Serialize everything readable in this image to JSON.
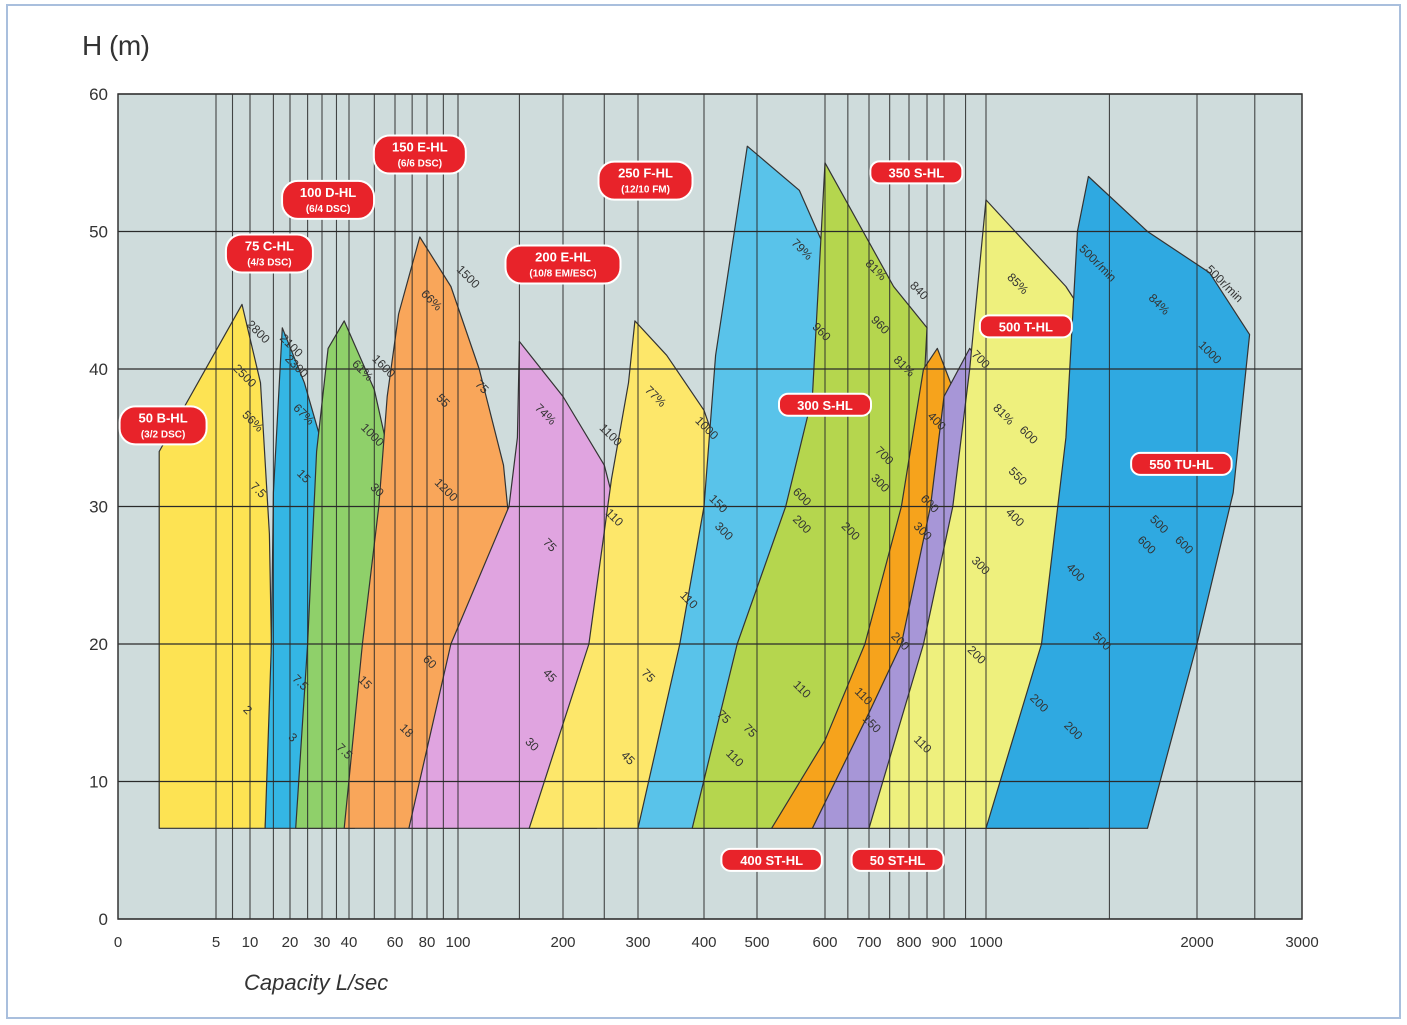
{
  "chart_data": {
    "type": "area",
    "title": "",
    "ylabel": "H (m)",
    "xlabel": "Capacity L/sec",
    "x_scale": "log",
    "ylim": [
      0,
      60
    ],
    "yticks": [
      0,
      10,
      20,
      30,
      40,
      50,
      60
    ],
    "xticks": [
      {
        "label": "0",
        "value": 0
      },
      {
        "label": "5",
        "value": 5
      },
      {
        "label": "10",
        "value": 10
      },
      {
        "label": "20",
        "value": 20
      },
      {
        "label": "30",
        "value": 30
      },
      {
        "label": "40",
        "value": 40
      },
      {
        "label": "60",
        "value": 60
      },
      {
        "label": "80",
        "value": 80
      },
      {
        "label": "100",
        "value": 100
      },
      {
        "label": "200",
        "value": 200
      },
      {
        "label": "300",
        "value": 300
      },
      {
        "label": "400",
        "value": 400
      },
      {
        "label": "500",
        "value": 500
      },
      {
        "label": "600",
        "value": 600
      },
      {
        "label": "700",
        "value": 700
      },
      {
        "label": "800",
        "value": 800
      },
      {
        "label": "900",
        "value": 900
      },
      {
        "label": "1000",
        "value": 1000
      },
      {
        "label": "2000",
        "value": 2000
      },
      {
        "label": "3000",
        "value": 3000
      }
    ],
    "grid": true,
    "colors": {
      "background": "#cfdcdc",
      "grid": "#2a2a2a",
      "label_bg": "#e8232a",
      "label_text": "#ffffff",
      "curve": "#2a2a2a"
    },
    "series": [
      {
        "name": "50 B-HL",
        "sub": "(3/2 DSC)",
        "color": "#fde353",
        "label_at": {
          "x": 2.3,
          "y": 35.9
        },
        "polygon": [
          [
            2.1,
            6.6
          ],
          [
            2.1,
            34
          ],
          [
            8.5,
            44.7
          ],
          [
            12,
            39
          ],
          [
            14,
            28
          ],
          [
            14.5,
            20
          ],
          [
            14,
            11
          ],
          [
            13,
            6.6
          ]
        ],
        "speeds": [],
        "tags": [
          {
            "t": "2500",
            "x": 8.5,
            "y": 39.3
          },
          {
            "t": "2800",
            "x": 11,
            "y": 42.5
          },
          {
            "t": "56%",
            "x": 10,
            "y": 36
          },
          {
            "t": "7.5",
            "x": 11,
            "y": 31
          },
          {
            "t": "2",
            "x": 9,
            "y": 15
          }
        ]
      },
      {
        "name": "75 C-HL",
        "sub": "(4/3 DSC)",
        "color": "#34b6e4",
        "label_at": {
          "x": 14,
          "y": 48.4
        },
        "polygon": [
          [
            13,
            6.6
          ],
          [
            14.5,
            20
          ],
          [
            15,
            31
          ],
          [
            17.5,
            43
          ],
          [
            24,
            39
          ],
          [
            32,
            33
          ],
          [
            35,
            26
          ],
          [
            36,
            20
          ],
          [
            33,
            6.6
          ]
        ],
        "speeds": [],
        "tags": [
          {
            "t": "2100",
            "x": 19.5,
            "y": 41.5
          },
          {
            "t": "2300",
            "x": 21,
            "y": 40
          },
          {
            "t": "67%",
            "x": 23,
            "y": 36.5
          },
          {
            "t": "15",
            "x": 23,
            "y": 32
          },
          {
            "t": "7.5",
            "x": 22,
            "y": 17
          },
          {
            "t": "3",
            "x": 20,
            "y": 13
          }
        ]
      },
      {
        "name": "100 D-HL",
        "sub": "(6/4 DSC)",
        "color": "#8fd06a",
        "label_at": {
          "x": 32,
          "y": 52.3
        },
        "polygon": [
          [
            21.5,
            6.6
          ],
          [
            25,
            20
          ],
          [
            28,
            34
          ],
          [
            32,
            41.5
          ],
          [
            38,
            43.5
          ],
          [
            50,
            38.5
          ],
          [
            58,
            33
          ],
          [
            60,
            26
          ],
          [
            55,
            20
          ],
          [
            42,
            6.6
          ]
        ],
        "speeds": [],
        "tags": [
          {
            "t": "1600",
            "x": 53,
            "y": 40
          },
          {
            "t": "61%",
            "x": 44,
            "y": 39.7
          },
          {
            "t": "1000",
            "x": 48,
            "y": 35
          },
          {
            "t": "30",
            "x": 50,
            "y": 31
          },
          {
            "t": "15",
            "x": 45,
            "y": 17
          },
          {
            "t": "7.5",
            "x": 37,
            "y": 12
          }
        ]
      },
      {
        "name": "150 E-HL",
        "sub": "(6/6 DSC)",
        "color": "#f9a65a",
        "label_at": {
          "x": 75,
          "y": 55.6
        },
        "polygon": [
          [
            38,
            6.6
          ],
          [
            45,
            20
          ],
          [
            52,
            30
          ],
          [
            56,
            38
          ],
          [
            62,
            44
          ],
          [
            75,
            49.6
          ],
          [
            95,
            46
          ],
          [
            115,
            40
          ],
          [
            135,
            33
          ],
          [
            145,
            25
          ],
          [
            100,
            6.6
          ]
        ],
        "speeds": [],
        "tags": [
          {
            "t": "66%",
            "x": 81,
            "y": 44.8
          },
          {
            "t": "1500",
            "x": 105,
            "y": 46.5
          },
          {
            "t": "55",
            "x": 88,
            "y": 37.5
          },
          {
            "t": "1200",
            "x": 90,
            "y": 31
          },
          {
            "t": "75",
            "x": 115,
            "y": 38.5
          },
          {
            "t": "60",
            "x": 80,
            "y": 18.5
          },
          {
            "t": "18",
            "x": 65,
            "y": 13.5
          }
        ]
      },
      {
        "name": "200 E-HL",
        "sub": "(10/8 EM/ESC)",
        "color": "#e0a4e0",
        "label_at": {
          "x": 200,
          "y": 47.6
        },
        "polygon": [
          [
            68,
            6.6
          ],
          [
            95,
            20
          ],
          [
            140,
            30
          ],
          [
            148,
            35
          ],
          [
            150,
            42
          ],
          [
            200,
            38
          ],
          [
            250,
            33
          ],
          [
            275,
            28
          ],
          [
            280,
            18
          ],
          [
            240,
            6.6
          ]
        ],
        "speeds": [],
        "tags": [
          {
            "t": "74%",
            "x": 175,
            "y": 36.5
          },
          {
            "t": "1100",
            "x": 255,
            "y": 35
          },
          {
            "t": "110",
            "x": 260,
            "y": 29
          },
          {
            "t": "75",
            "x": 180,
            "y": 27
          },
          {
            "t": "45",
            "x": 180,
            "y": 17.5
          },
          {
            "t": "30",
            "x": 160,
            "y": 12.5
          }
        ]
      },
      {
        "name": "250 F-HL",
        "sub": "(12/10 FM)",
        "color": "#fde76a",
        "label_at": {
          "x": 310,
          "y": 53.7
        },
        "polygon": [
          [
            160,
            6.6
          ],
          [
            230,
            20
          ],
          [
            260,
            32
          ],
          [
            285,
            39
          ],
          [
            295,
            43.5
          ],
          [
            340,
            41
          ],
          [
            400,
            37
          ],
          [
            460,
            30
          ],
          [
            480,
            29
          ],
          [
            440,
            20
          ],
          [
            300,
            6.6
          ]
        ],
        "speeds": [],
        "tags": [
          {
            "t": "77%",
            "x": 320,
            "y": 37.8
          },
          {
            "t": "1000",
            "x": 400,
            "y": 35.5
          },
          {
            "t": "150",
            "x": 420,
            "y": 30
          },
          {
            "t": "300",
            "x": 430,
            "y": 28
          },
          {
            "t": "110",
            "x": 370,
            "y": 23
          },
          {
            "t": "75",
            "x": 310,
            "y": 17.5
          },
          {
            "t": "45",
            "x": 280,
            "y": 11.5
          }
        ]
      },
      {
        "name": "300 S-HL",
        "sub": "",
        "color": "#59c3ea",
        "label_at": {
          "x": 600,
          "y": 37.4
        },
        "polygon": [
          [
            300,
            6.6
          ],
          [
            360,
            20
          ],
          [
            400,
            30
          ],
          [
            420,
            41
          ],
          [
            480,
            56.2
          ],
          [
            560,
            53
          ],
          [
            650,
            45
          ],
          [
            700,
            40
          ],
          [
            700,
            30
          ],
          [
            680,
            20
          ],
          [
            640,
            6.6
          ]
        ],
        "speeds": [],
        "tags": [
          {
            "t": "79%",
            "x": 560,
            "y": 48.5
          },
          {
            "t": "960",
            "x": 590,
            "y": 42.5
          },
          {
            "t": "600",
            "x": 560,
            "y": 30.5
          },
          {
            "t": "200",
            "x": 560,
            "y": 28.5
          },
          {
            "t": "110",
            "x": 450,
            "y": 11.5
          },
          {
            "t": "75",
            "x": 430,
            "y": 14.5
          }
        ]
      },
      {
        "name": "350 S-HL",
        "sub": "",
        "color": "#b5d64e",
        "label_at": {
          "x": 820,
          "y": 54.3
        },
        "polygon": [
          [
            380,
            6.6
          ],
          [
            460,
            20
          ],
          [
            540,
            30
          ],
          [
            580,
            38
          ],
          [
            600,
            55
          ],
          [
            760,
            46
          ],
          [
            850,
            43
          ],
          [
            830,
            33
          ],
          [
            790,
            20
          ],
          [
            760,
            6.6
          ]
        ],
        "speeds": [],
        "tags": [
          {
            "t": "81%",
            "x": 710,
            "y": 47
          },
          {
            "t": "960",
            "x": 720,
            "y": 43
          },
          {
            "t": "840",
            "x": 820,
            "y": 45.5
          },
          {
            "t": "81%",
            "x": 780,
            "y": 40
          },
          {
            "t": "700",
            "x": 730,
            "y": 33.5
          },
          {
            "t": "300",
            "x": 720,
            "y": 31.5
          },
          {
            "t": "200",
            "x": 650,
            "y": 28
          },
          {
            "t": "110",
            "x": 560,
            "y": 16.5
          },
          {
            "t": "75",
            "x": 480,
            "y": 13.5
          }
        ]
      },
      {
        "name": "400 ST-HL",
        "sub": "",
        "color": "#f6a31c",
        "label_at": {
          "x": 520,
          "y": 4.3
        },
        "polygon": [
          [
            520,
            6.6
          ],
          [
            600,
            13
          ],
          [
            690,
            20
          ],
          [
            780,
            30
          ],
          [
            840,
            40
          ],
          [
            880,
            41.5
          ],
          [
            940,
            37
          ],
          [
            980,
            35
          ],
          [
            940,
            20
          ],
          [
            900,
            6.6
          ]
        ],
        "speeds": [],
        "tags": [
          {
            "t": "400",
            "x": 870,
            "y": 36
          },
          {
            "t": "600",
            "x": 850,
            "y": 30
          },
          {
            "t": "300",
            "x": 830,
            "y": 28
          },
          {
            "t": "200",
            "x": 770,
            "y": 20
          },
          {
            "t": "110",
            "x": 680,
            "y": 16
          },
          {
            "t": "150",
            "x": 700,
            "y": 14
          }
        ]
      },
      {
        "name": "50 ST-HL",
        "sub": "",
        "color": "#a796d7",
        "label_at": {
          "x": 770,
          "y": 4.3
        },
        "polygon": [
          [
            580,
            6.6
          ],
          [
            700,
            15
          ],
          [
            780,
            20
          ],
          [
            860,
            30
          ],
          [
            900,
            38
          ],
          [
            960,
            41.5
          ],
          [
            1180,
            35
          ],
          [
            1150,
            20
          ],
          [
            1080,
            6.6
          ]
        ],
        "speeds": [],
        "tags": [
          {
            "t": "700",
            "x": 980,
            "y": 40.5
          },
          {
            "t": "81%",
            "x": 1050,
            "y": 36.5
          },
          {
            "t": "600",
            "x": 1140,
            "y": 35
          },
          {
            "t": "550",
            "x": 1100,
            "y": 32
          },
          {
            "t": "400",
            "x": 1090,
            "y": 29
          },
          {
            "t": "300",
            "x": 980,
            "y": 25.5
          },
          {
            "t": "200",
            "x": 970,
            "y": 19
          },
          {
            "t": "110",
            "x": 830,
            "y": 12.5
          }
        ]
      },
      {
        "name": "500 T-HL",
        "sub": "",
        "color": "#eef07d",
        "label_at": {
          "x": 1140,
          "y": 43.1
        },
        "polygon": [
          [
            700,
            6.6
          ],
          [
            840,
            20
          ],
          [
            920,
            30
          ],
          [
            960,
            40
          ],
          [
            1000,
            52.3
          ],
          [
            1300,
            46
          ],
          [
            1550,
            40
          ],
          [
            1620,
            35
          ],
          [
            1450,
            20
          ],
          [
            1400,
            6.6
          ]
        ],
        "speeds": [],
        "tags": [
          {
            "t": "85%",
            "x": 1100,
            "y": 46
          },
          {
            "t": "400",
            "x": 1330,
            "y": 25
          },
          {
            "t": "500",
            "x": 1450,
            "y": 20
          },
          {
            "t": "200",
            "x": 1180,
            "y": 15.5
          },
          {
            "t": "200",
            "x": 1320,
            "y": 13.5
          }
        ]
      },
      {
        "name": "550 TU-HL",
        "sub": "",
        "color": "#2fa9e1",
        "label_at": {
          "x": 1900,
          "y": 33.1
        },
        "polygon": [
          [
            1000,
            6.6
          ],
          [
            1200,
            20
          ],
          [
            1300,
            35
          ],
          [
            1350,
            50
          ],
          [
            1400,
            54
          ],
          [
            1700,
            50
          ],
          [
            2100,
            47
          ],
          [
            2450,
            42.5
          ],
          [
            2300,
            31
          ],
          [
            2000,
            20
          ],
          [
            1700,
            6.6
          ]
        ],
        "speeds": [],
        "tags": [
          {
            "t": "500r/min",
            "x": 1430,
            "y": 47.5
          },
          {
            "t": "84%",
            "x": 1750,
            "y": 44.5
          },
          {
            "t": "500r/min",
            "x": 2200,
            "y": 46
          },
          {
            "t": "1000",
            "x": 2080,
            "y": 41
          },
          {
            "t": "600",
            "x": 1900,
            "y": 27
          },
          {
            "t": "500",
            "x": 1750,
            "y": 28.5
          },
          {
            "t": "600",
            "x": 1680,
            "y": 27
          }
        ]
      }
    ]
  }
}
